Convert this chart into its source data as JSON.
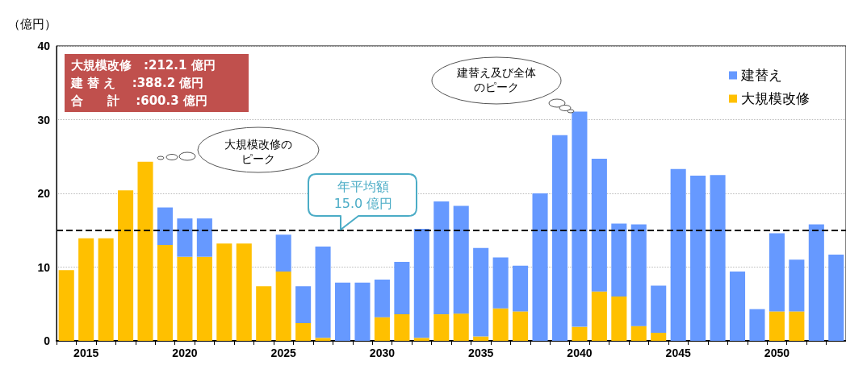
{
  "chart_data": {
    "type": "bar",
    "stacked": true,
    "ylabel": "（億円）",
    "categories": [
      null,
      "2015",
      null,
      null,
      null,
      null,
      "2020",
      null,
      null,
      null,
      null,
      "2025",
      null,
      null,
      null,
      null,
      "2030",
      null,
      null,
      null,
      null,
      "2035",
      null,
      null,
      null,
      null,
      "2040",
      null,
      null,
      null,
      null,
      "2045",
      null,
      null,
      null,
      null,
      "2050",
      null,
      null,
      null
    ],
    "series": [
      {
        "name": "大規模改修",
        "color": "#ffc000",
        "values": [
          9.6,
          13.9,
          13.9,
          20.4,
          24.3,
          13.0,
          11.4,
          11.4,
          13.2,
          13.2,
          7.4,
          9.4,
          2.4,
          0.4,
          0,
          0,
          3.2,
          3.6,
          0.4,
          3.6,
          3.7,
          0.6,
          4.4,
          4.0,
          0,
          0,
          1.9,
          6.7,
          6.0,
          2.0,
          1.1,
          0,
          0,
          0,
          0,
          0,
          4.0,
          4.0,
          0,
          0
        ]
      },
      {
        "name": "建替え",
        "color": "#6699ff",
        "values": [
          0,
          0,
          0,
          0,
          0,
          5.1,
          5.2,
          5.2,
          0,
          0,
          0,
          5.0,
          5.0,
          12.4,
          7.9,
          7.9,
          5.1,
          7.1,
          14.8,
          15.3,
          14.6,
          12.0,
          6.9,
          6.2,
          20.0,
          27.9,
          29.2,
          18.0,
          9.9,
          13.8,
          6.4,
          23.3,
          22.4,
          22.5,
          9.4,
          4.3,
          10.6,
          7.0,
          15.8,
          11.7
        ]
      }
    ],
    "ylim": [
      0,
      40
    ],
    "yticks": [
      0,
      10,
      20,
      30,
      40
    ],
    "grid": "y",
    "legend": "top right",
    "ref_lines": [
      {
        "axis": "y",
        "value": 15.0,
        "label": "年平均額15.0 億円",
        "line_style": "dashed",
        "color": "#000000"
      }
    ],
    "annotations": [
      "大規模改修　:212.1 億円",
      "建 替 え　 :388.2 億円",
      "合　　計　 :600.3 億円",
      "大規模改修のピーク",
      "建替え及び全体のピーク"
    ]
  }
}
